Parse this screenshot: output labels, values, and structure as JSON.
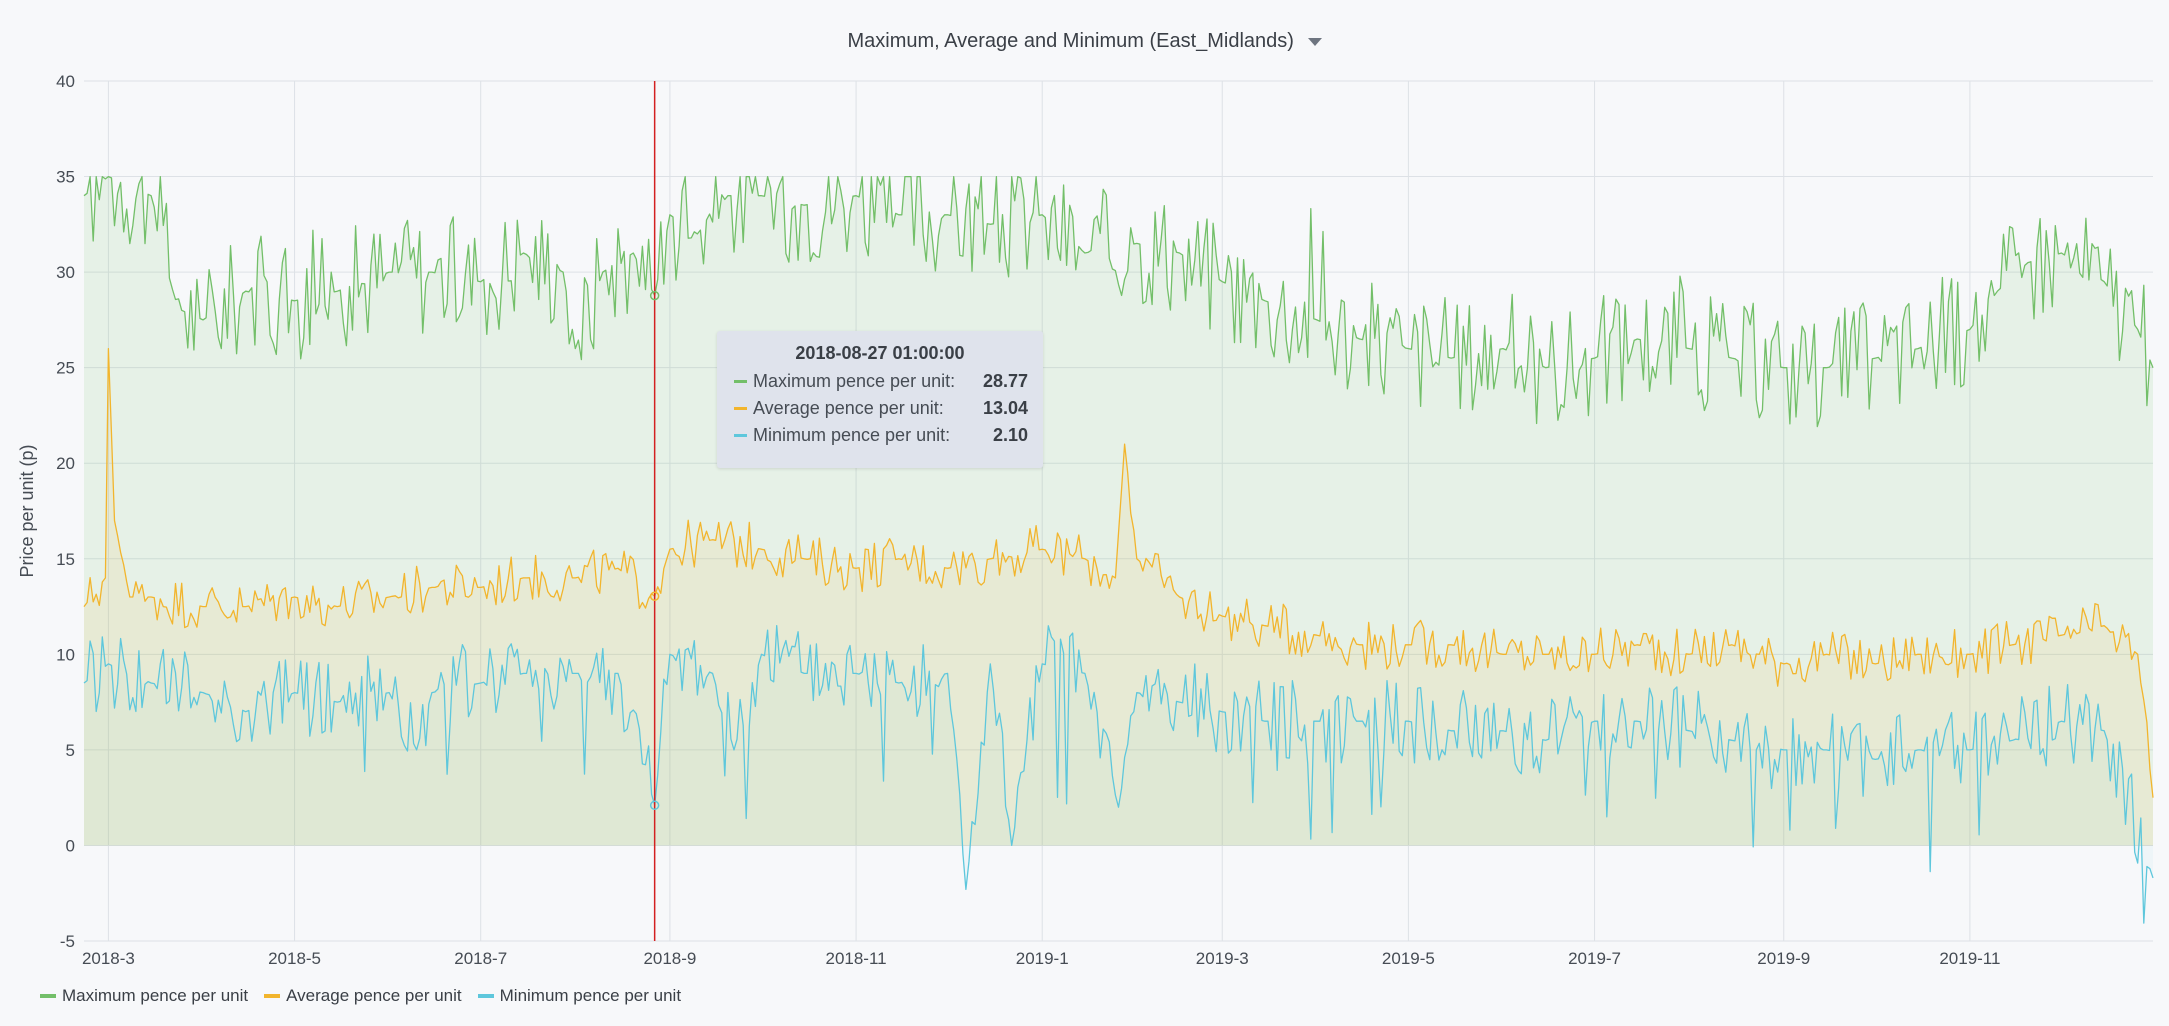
{
  "panel": {
    "title": "Maximum, Average and Minimum (East_Midlands)"
  },
  "tooltip": {
    "time": "2018-08-27 01:00:00",
    "rows": [
      {
        "label": "Maximum pence per unit:",
        "value": "28.77",
        "color": "#73bf69"
      },
      {
        "label": "Average pence per unit:",
        "value": "13.04",
        "color": "#f2b52d"
      },
      {
        "label": "Minimum pence per unit:",
        "value": "2.10",
        "color": "#5ec7dc"
      }
    ]
  },
  "legend": [
    {
      "label": "Maximum pence per unit",
      "color": "#73bf69"
    },
    {
      "label": "Average pence per unit",
      "color": "#f2b52d"
    },
    {
      "label": "Minimum pence per unit",
      "color": "#5ec7dc"
    }
  ],
  "chart_data": {
    "type": "area",
    "title": "",
    "ylabel": "Price per unit (p)",
    "xlabel": "",
    "ylim": [
      -5,
      40
    ],
    "yticks": [
      -5,
      0,
      5,
      10,
      15,
      20,
      25,
      30,
      35,
      40
    ],
    "xlim": [
      "2018-02-21",
      "2019-12-31"
    ],
    "xticks": [
      {
        "label": "2018-3",
        "date": "2018-03-01"
      },
      {
        "label": "2018-5",
        "date": "2018-05-01"
      },
      {
        "label": "2018-7",
        "date": "2018-07-01"
      },
      {
        "label": "2018-9",
        "date": "2018-09-01"
      },
      {
        "label": "2018-11",
        "date": "2018-11-01"
      },
      {
        "label": "2019-1",
        "date": "2019-01-01"
      },
      {
        "label": "2019-3",
        "date": "2019-03-01"
      },
      {
        "label": "2019-5",
        "date": "2019-05-01"
      },
      {
        "label": "2019-7",
        "date": "2019-07-01"
      },
      {
        "label": "2019-9",
        "date": "2019-09-01"
      },
      {
        "label": "2019-11",
        "date": "2019-11-01"
      }
    ],
    "grid": true,
    "legend_position": "bottom-left",
    "crosshair_date": "2018-08-27",
    "series": [
      {
        "name": "Maximum pence per unit",
        "color": "#73bf69",
        "x": [
          "2018-02-21",
          "2018-03-01",
          "2018-03-15",
          "2018-03-25",
          "2018-04-01",
          "2018-04-15",
          "2018-05-01",
          "2018-05-15",
          "2018-06-01",
          "2018-06-15",
          "2018-07-01",
          "2018-07-15",
          "2018-07-28",
          "2018-08-01",
          "2018-08-10",
          "2018-08-20",
          "2018-08-27",
          "2018-09-01",
          "2018-09-10",
          "2018-09-20",
          "2018-10-01",
          "2018-10-15",
          "2018-11-01",
          "2018-11-15",
          "2018-12-01",
          "2018-12-15",
          "2019-01-01",
          "2019-01-15",
          "2019-02-01",
          "2019-02-15",
          "2019-03-01",
          "2019-03-15",
          "2019-04-01",
          "2019-04-15",
          "2019-05-01",
          "2019-05-15",
          "2019-06-01",
          "2019-06-15",
          "2019-07-01",
          "2019-07-15",
          "2019-08-01",
          "2019-08-15",
          "2019-09-01",
          "2019-09-15",
          "2019-10-01",
          "2019-10-15",
          "2019-11-01",
          "2019-11-10",
          "2019-11-20",
          "2019-12-01",
          "2019-12-15",
          "2019-12-26",
          "2019-12-31"
        ],
        "values": [
          34,
          35,
          34,
          28,
          27.5,
          29,
          28.5,
          29,
          30,
          30,
          29.5,
          31,
          30,
          26,
          30,
          31,
          28.77,
          33,
          32,
          34,
          34,
          33.5,
          34,
          33,
          33,
          32.5,
          33,
          31,
          31.5,
          31,
          29.5,
          28.5,
          27.5,
          26.5,
          26,
          25.5,
          26,
          25,
          25.5,
          26.5,
          26,
          25.5,
          25,
          25,
          25.5,
          26,
          27,
          29,
          30.5,
          31,
          29.5,
          27,
          25
        ]
      },
      {
        "name": "Average pence per unit",
        "color": "#f2b52d",
        "x": [
          "2018-02-21",
          "2018-02-28",
          "2018-03-01",
          "2018-03-03",
          "2018-03-08",
          "2018-03-15",
          "2018-04-01",
          "2018-04-15",
          "2018-05-01",
          "2018-05-15",
          "2018-06-01",
          "2018-06-15",
          "2018-07-01",
          "2018-07-15",
          "2018-08-01",
          "2018-08-15",
          "2018-08-27",
          "2018-09-01",
          "2018-09-15",
          "2018-10-01",
          "2018-10-15",
          "2018-11-01",
          "2018-11-15",
          "2018-12-01",
          "2018-12-15",
          "2019-01-01",
          "2019-01-15",
          "2019-01-25",
          "2019-01-28",
          "2019-02-01",
          "2019-02-15",
          "2019-03-01",
          "2019-03-15",
          "2019-04-01",
          "2019-04-15",
          "2019-05-01",
          "2019-05-15",
          "2019-06-01",
          "2019-06-15",
          "2019-07-01",
          "2019-07-15",
          "2019-08-01",
          "2019-08-15",
          "2019-09-01",
          "2019-09-15",
          "2019-10-01",
          "2019-10-15",
          "2019-11-01",
          "2019-11-15",
          "2019-12-01",
          "2019-12-15",
          "2019-12-26",
          "2019-12-31"
        ],
        "values": [
          12.5,
          14,
          26,
          17,
          13,
          13,
          12.5,
          12.5,
          13,
          12.5,
          13,
          13.5,
          13.5,
          14,
          14,
          14.5,
          13.04,
          15.5,
          16,
          15.5,
          15,
          14.5,
          15,
          14.5,
          15,
          15.5,
          15,
          14,
          21,
          15,
          13,
          12,
          11.5,
          11,
          10.5,
          10.5,
          10.5,
          10,
          10,
          10,
          10.5,
          10,
          10.5,
          9.5,
          10,
          9.5,
          10,
          10,
          10.5,
          11,
          11.5,
          10,
          2.5
        ]
      },
      {
        "name": "Minimum pence per unit",
        "color": "#5ec7dc",
        "x": [
          "2018-02-21",
          "2018-03-01",
          "2018-03-15",
          "2018-04-01",
          "2018-04-15",
          "2018-05-01",
          "2018-05-15",
          "2018-06-01",
          "2018-06-10",
          "2018-06-15",
          "2018-07-01",
          "2018-07-15",
          "2018-08-01",
          "2018-08-15",
          "2018-08-27",
          "2018-09-01",
          "2018-09-15",
          "2018-09-22",
          "2018-10-01",
          "2018-10-15",
          "2018-11-01",
          "2018-11-15",
          "2018-12-01",
          "2018-12-07",
          "2018-12-15",
          "2018-12-22",
          "2019-01-01",
          "2019-01-15",
          "2019-01-26",
          "2019-02-01",
          "2019-02-15",
          "2019-03-01",
          "2019-03-15",
          "2019-04-01",
          "2019-04-15",
          "2019-05-01",
          "2019-05-15",
          "2019-06-01",
          "2019-06-15",
          "2019-07-01",
          "2019-07-15",
          "2019-08-01",
          "2019-08-15",
          "2019-09-01",
          "2019-09-15",
          "2019-10-01",
          "2019-10-15",
          "2019-11-01",
          "2019-11-15",
          "2019-12-01",
          "2019-12-15",
          "2019-12-31"
        ],
        "values": [
          8.5,
          9.5,
          8.5,
          8,
          7,
          8,
          7.5,
          8,
          5,
          8,
          8.5,
          9,
          9,
          9,
          2.1,
          10,
          9,
          5,
          10,
          9,
          9,
          8.5,
          9,
          -2.3,
          9.5,
          0,
          9.5,
          9,
          2,
          8,
          7.5,
          7,
          6.5,
          6.5,
          6.5,
          6.5,
          6,
          6,
          5.5,
          6.5,
          6.5,
          6,
          5.5,
          5,
          5,
          4.5,
          5,
          5,
          5.5,
          6.5,
          6,
          -1.7
        ]
      }
    ]
  }
}
